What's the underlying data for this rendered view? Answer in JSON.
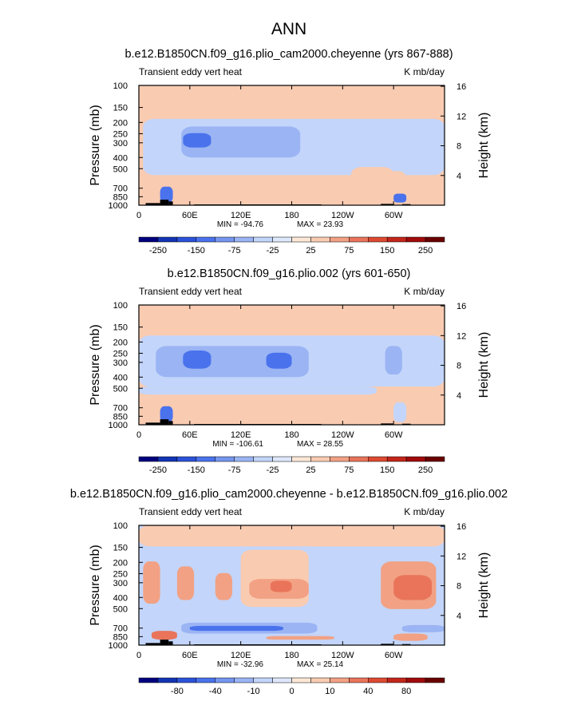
{
  "page_title": "ANN",
  "colors": {
    "neg": [
      "#00007f",
      "#1234b4",
      "#2b52d9",
      "#4a72ec",
      "#7596ef",
      "#9ab4f4",
      "#c3d5fa",
      "#dde8fc"
    ],
    "pos": [
      "#fde8d7",
      "#f9cbb1",
      "#f2a184",
      "#e9745a",
      "#dd4a31",
      "#c3261a",
      "#a10b0b",
      "#6a0000"
    ],
    "land": "#000000",
    "frame": "#000000"
  },
  "chart_data": [
    {
      "type": "heatmap",
      "title": "b.e12.B1850CN.f09_g16.plio_cam2000.cheyenne (yrs 867-888)",
      "left_label": "Transient eddy vert heat",
      "right_label": "K mb/day",
      "ylabel": "Pressure (mb)",
      "y2label": "Height (km)",
      "y_ticks": [
        "100",
        "150",
        "200",
        "250",
        "300",
        "400",
        "500",
        "700",
        "850",
        "1000"
      ],
      "y2_ticks": [
        "16",
        "12",
        "8",
        "4"
      ],
      "x_ticks": [
        "0",
        "60E",
        "120E",
        "180",
        "120W",
        "60W"
      ],
      "x_range": [
        0,
        360
      ],
      "y_range_mb": [
        1000,
        100
      ],
      "min_label": "MIN = -94.76",
      "max_label": "MAX = 23.93",
      "colorbar_labels": [
        "-250",
        "-150",
        "-75",
        "-25",
        "25",
        "75",
        "150",
        "250"
      ],
      "background_level": 0.15,
      "regions": [
        {
          "lon": [
            5,
            360
          ],
          "p": [
            190,
            560
          ],
          "level": -0.2
        },
        {
          "lon": [
            50,
            190
          ],
          "p": [
            220,
            400
          ],
          "level": -0.35
        },
        {
          "lon": [
            52,
            85
          ],
          "p": [
            250,
            330
          ],
          "level": -0.6
        },
        {
          "lon": [
            250,
            300
          ],
          "p": [
            480,
            700
          ],
          "level": 0.15
        },
        {
          "lon": [
            290,
            315
          ],
          "p": [
            520,
            950
          ],
          "level": 0.15
        },
        {
          "lon": [
            150,
            240
          ],
          "p": [
            700,
            900
          ],
          "level": 0.15
        },
        {
          "lon": [
            25,
            40
          ],
          "p": [
            700,
            950
          ],
          "level": -0.6
        },
        {
          "lon": [
            300,
            315
          ],
          "p": [
            800,
            950
          ],
          "level": -0.6
        }
      ],
      "land": [
        {
          "lon": [
            8,
            25
          ],
          "p": [
            960,
            1000
          ]
        },
        {
          "lon": [
            25,
            35
          ],
          "p": [
            900,
            1000
          ]
        },
        {
          "lon": [
            35,
            40
          ],
          "p": [
            930,
            1000
          ]
        },
        {
          "lon": [
            65,
            215
          ],
          "p": [
            985,
            1000
          ]
        },
        {
          "lon": [
            285,
            300
          ],
          "p": [
            975,
            1000
          ]
        },
        {
          "lon": [
            310,
            320
          ],
          "p": [
            980,
            1000
          ]
        }
      ]
    },
    {
      "type": "heatmap",
      "title": "b.e12.B1850CN.f09_g16.plio.002 (yrs 601-650)",
      "left_label": "Transient eddy vert heat",
      "right_label": "K mb/day",
      "ylabel": "Pressure (mb)",
      "y2label": "Height (km)",
      "y_ticks": [
        "100",
        "150",
        "200",
        "250",
        "300",
        "400",
        "500",
        "700",
        "850",
        "1000"
      ],
      "y2_ticks": [
        "16",
        "12",
        "8",
        "4"
      ],
      "x_ticks": [
        "0",
        "60E",
        "120E",
        "180",
        "120W",
        "60W"
      ],
      "x_range": [
        0,
        360
      ],
      "y_range_mb": [
        1000,
        100
      ],
      "min_label": "MIN = -106.61",
      "max_label": "MAX = 28.55",
      "colorbar_labels": [
        "-250",
        "-150",
        "-75",
        "-25",
        "25",
        "75",
        "150",
        "250"
      ],
      "background_level": 0.15,
      "regions": [
        {
          "lon": [
            0,
            360
          ],
          "p": [
            180,
            480
          ],
          "level": -0.2
        },
        {
          "lon": [
            0,
            280
          ],
          "p": [
            480,
            560
          ],
          "level": -0.2
        },
        {
          "lon": [
            20,
            200
          ],
          "p": [
            220,
            400
          ],
          "level": -0.35
        },
        {
          "lon": [
            52,
            85
          ],
          "p": [
            240,
            340
          ],
          "level": -0.6
        },
        {
          "lon": [
            150,
            180
          ],
          "p": [
            250,
            340
          ],
          "level": -0.6
        },
        {
          "lon": [
            290,
            310
          ],
          "p": [
            220,
            380
          ],
          "level": -0.35
        },
        {
          "lon": [
            300,
            315
          ],
          "p": [
            650,
            950
          ],
          "level": -0.2
        },
        {
          "lon": [
            25,
            40
          ],
          "p": [
            700,
            950
          ],
          "level": -0.6
        }
      ],
      "land": [
        {
          "lon": [
            8,
            25
          ],
          "p": [
            960,
            1000
          ]
        },
        {
          "lon": [
            25,
            35
          ],
          "p": [
            900,
            1000
          ]
        },
        {
          "lon": [
            35,
            40
          ],
          "p": [
            930,
            1000
          ]
        },
        {
          "lon": [
            65,
            215
          ],
          "p": [
            985,
            1000
          ]
        },
        {
          "lon": [
            285,
            300
          ],
          "p": [
            975,
            1000
          ]
        },
        {
          "lon": [
            310,
            320
          ],
          "p": [
            980,
            1000
          ]
        }
      ]
    },
    {
      "type": "heatmap",
      "title": "b.e12.B1850CN.f09_g16.plio_cam2000.cheyenne - b.e12.B1850CN.f09_g16.plio.002",
      "left_label": "Transient eddy vert heat",
      "right_label": "K mb/day",
      "ylabel": "Pressure (mb)",
      "y2label": "Height (km)",
      "y_ticks": [
        "100",
        "150",
        "200",
        "250",
        "300",
        "400",
        "500",
        "700",
        "850",
        "1000"
      ],
      "y2_ticks": [
        "16",
        "12",
        "8",
        "4"
      ],
      "x_ticks": [
        "0",
        "60E",
        "120E",
        "180",
        "120W",
        "60W"
      ],
      "x_range": [
        0,
        360
      ],
      "y_range_mb": [
        1000,
        100
      ],
      "min_label": "MIN = -32.96",
      "max_label": "MAX = 25.14",
      "colorbar_labels": [
        "-80",
        "-40",
        "-10",
        "0",
        "10",
        "40",
        "80"
      ],
      "background_level": -0.2,
      "regions": [
        {
          "lon": [
            0,
            360
          ],
          "p": [
            100,
            150
          ],
          "level": 0.15
        },
        {
          "lon": [
            120,
            200
          ],
          "p": [
            160,
            480
          ],
          "level": 0.15
        },
        {
          "lon": [
            5,
            25
          ],
          "p": [
            200,
            450
          ],
          "level": 0.3
        },
        {
          "lon": [
            45,
            65
          ],
          "p": [
            220,
            420
          ],
          "level": 0.3
        },
        {
          "lon": [
            90,
            110
          ],
          "p": [
            250,
            420
          ],
          "level": 0.3
        },
        {
          "lon": [
            130,
            200
          ],
          "p": [
            280,
            410
          ],
          "level": 0.3
        },
        {
          "lon": [
            155,
            180
          ],
          "p": [
            290,
            360
          ],
          "level": 0.45
        },
        {
          "lon": [
            285,
            350
          ],
          "p": [
            200,
            500
          ],
          "level": 0.3
        },
        {
          "lon": [
            300,
            345
          ],
          "p": [
            260,
            420
          ],
          "level": 0.45
        },
        {
          "lon": [
            50,
            210
          ],
          "p": [
            650,
            800
          ],
          "level": -0.35
        },
        {
          "lon": [
            60,
            170
          ],
          "p": [
            690,
            760
          ],
          "level": -0.6
        },
        {
          "lon": [
            310,
            360
          ],
          "p": [
            680,
            780
          ],
          "level": -0.35
        },
        {
          "lon": [
            15,
            45
          ],
          "p": [
            760,
            900
          ],
          "level": 0.45
        },
        {
          "lon": [
            150,
            230
          ],
          "p": [
            840,
            900
          ],
          "level": 0.3
        },
        {
          "lon": [
            300,
            340
          ],
          "p": [
            800,
            920
          ],
          "level": 0.3
        }
      ],
      "land": [
        {
          "lon": [
            8,
            25
          ],
          "p": [
            960,
            1000
          ]
        },
        {
          "lon": [
            25,
            35
          ],
          "p": [
            900,
            1000
          ]
        },
        {
          "lon": [
            35,
            40
          ],
          "p": [
            930,
            1000
          ]
        },
        {
          "lon": [
            65,
            215
          ],
          "p": [
            985,
            1000
          ]
        },
        {
          "lon": [
            285,
            300
          ],
          "p": [
            975,
            1000
          ]
        },
        {
          "lon": [
            310,
            320
          ],
          "p": [
            980,
            1000
          ]
        }
      ]
    }
  ]
}
